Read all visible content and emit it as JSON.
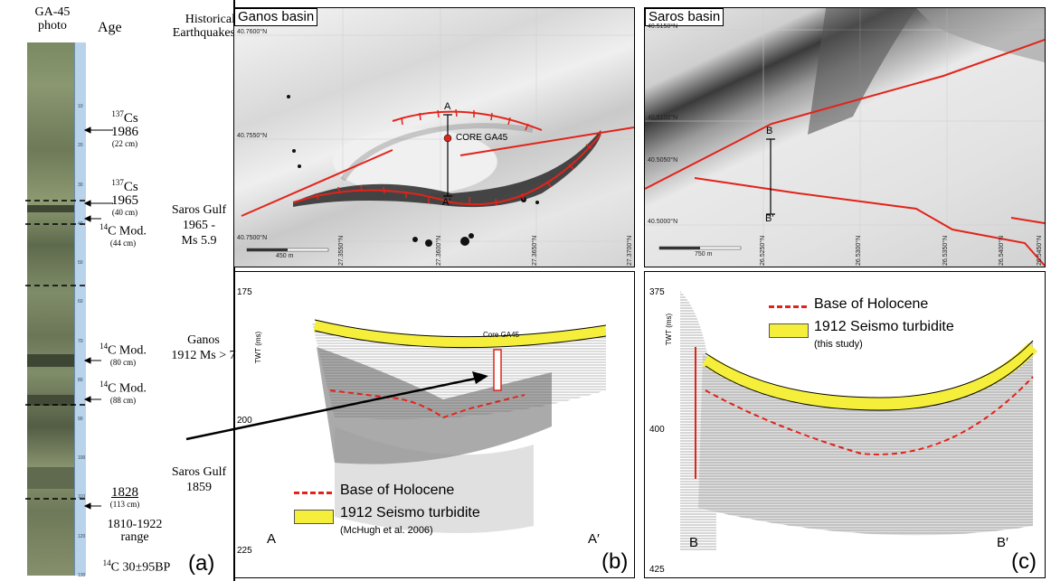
{
  "panel_a": {
    "header_photo": "GA-45\nphoto",
    "header_age": "Age",
    "header_hist": "Historical\nEarthquakes",
    "label": "(a)",
    "ruler_ticks": [
      "10",
      "20",
      "30",
      "40",
      "50",
      "60",
      "70",
      "80",
      "90",
      "100",
      "110",
      "120",
      "130"
    ],
    "ages": [
      {
        "top_sup": "137",
        "top": "Cs",
        "year": "1986",
        "depth": "(22 cm)"
      },
      {
        "top_sup": "137",
        "top": "Cs",
        "year": "1965",
        "depth": "(40 cm)"
      },
      {
        "top_sup": "14",
        "top": "C Mod.",
        "depth": "(44 cm)"
      },
      {
        "top_sup": "14",
        "top": "C Mod.",
        "depth": "(80 cm)"
      },
      {
        "top_sup": "14",
        "top": "C Mod.",
        "depth": "(88 cm)"
      },
      {
        "year": "1828",
        "depth": "(113 cm)",
        "range": "1810-1922\nrange"
      },
      {
        "top_sup": "14",
        "top": "C 30±95BP"
      }
    ],
    "earthquakes": [
      "Saros Gulf\n1965 -\nMs 5.9",
      "Ganos\n1912 Ms > 7",
      "Saros Gulf\n1859"
    ]
  },
  "panel_b": {
    "map_title": "Ganos basin",
    "core_label": "CORE GA45",
    "point_a": "A",
    "point_a2": "A'",
    "lat_labels": [
      "40.7600°N",
      "40.7550°N",
      "40.7500°N"
    ],
    "lon_labels": [
      "27.3550°N",
      "27.3600°N",
      "27.3650°N",
      "27.3700°N"
    ],
    "scale": "450 m",
    "seismic_core_label": "Core GA45",
    "y_axis": "TWT (ms)",
    "y_ticks": [
      "175",
      "200",
      "225"
    ],
    "end_a": "A",
    "end_a2": "A′",
    "legend_base": "Base of Holocene",
    "legend_turbidite": "1912 Seismo turbidite",
    "legend_ref": "(McHugh et al. 2006)",
    "label": "(b)"
  },
  "panel_c": {
    "map_title": "Saros basin",
    "lat_labels": [
      "40.5150°N",
      "40.5100°N",
      "40.5050°N",
      "40.5000°N"
    ],
    "lon_labels": [
      "26.5250°N",
      "26.5300°N",
      "26.5350°N",
      "26.5400°N",
      "26.5450°N"
    ],
    "scale": "750 m",
    "point_b": "B",
    "point_b2": "B'",
    "y_axis": "TWT (ms)",
    "y_ticks": [
      "375",
      "400",
      "425"
    ],
    "end_b": "B",
    "end_b2": "B′",
    "legend_base": "Base of Holocene",
    "legend_turbidite": "1912 Seismo turbidite",
    "legend_ref": "(this study)",
    "label": "(c)"
  },
  "colors": {
    "fault": "#e2231a",
    "turbidite": "#f5ef3c",
    "core": "#7a8a66"
  }
}
